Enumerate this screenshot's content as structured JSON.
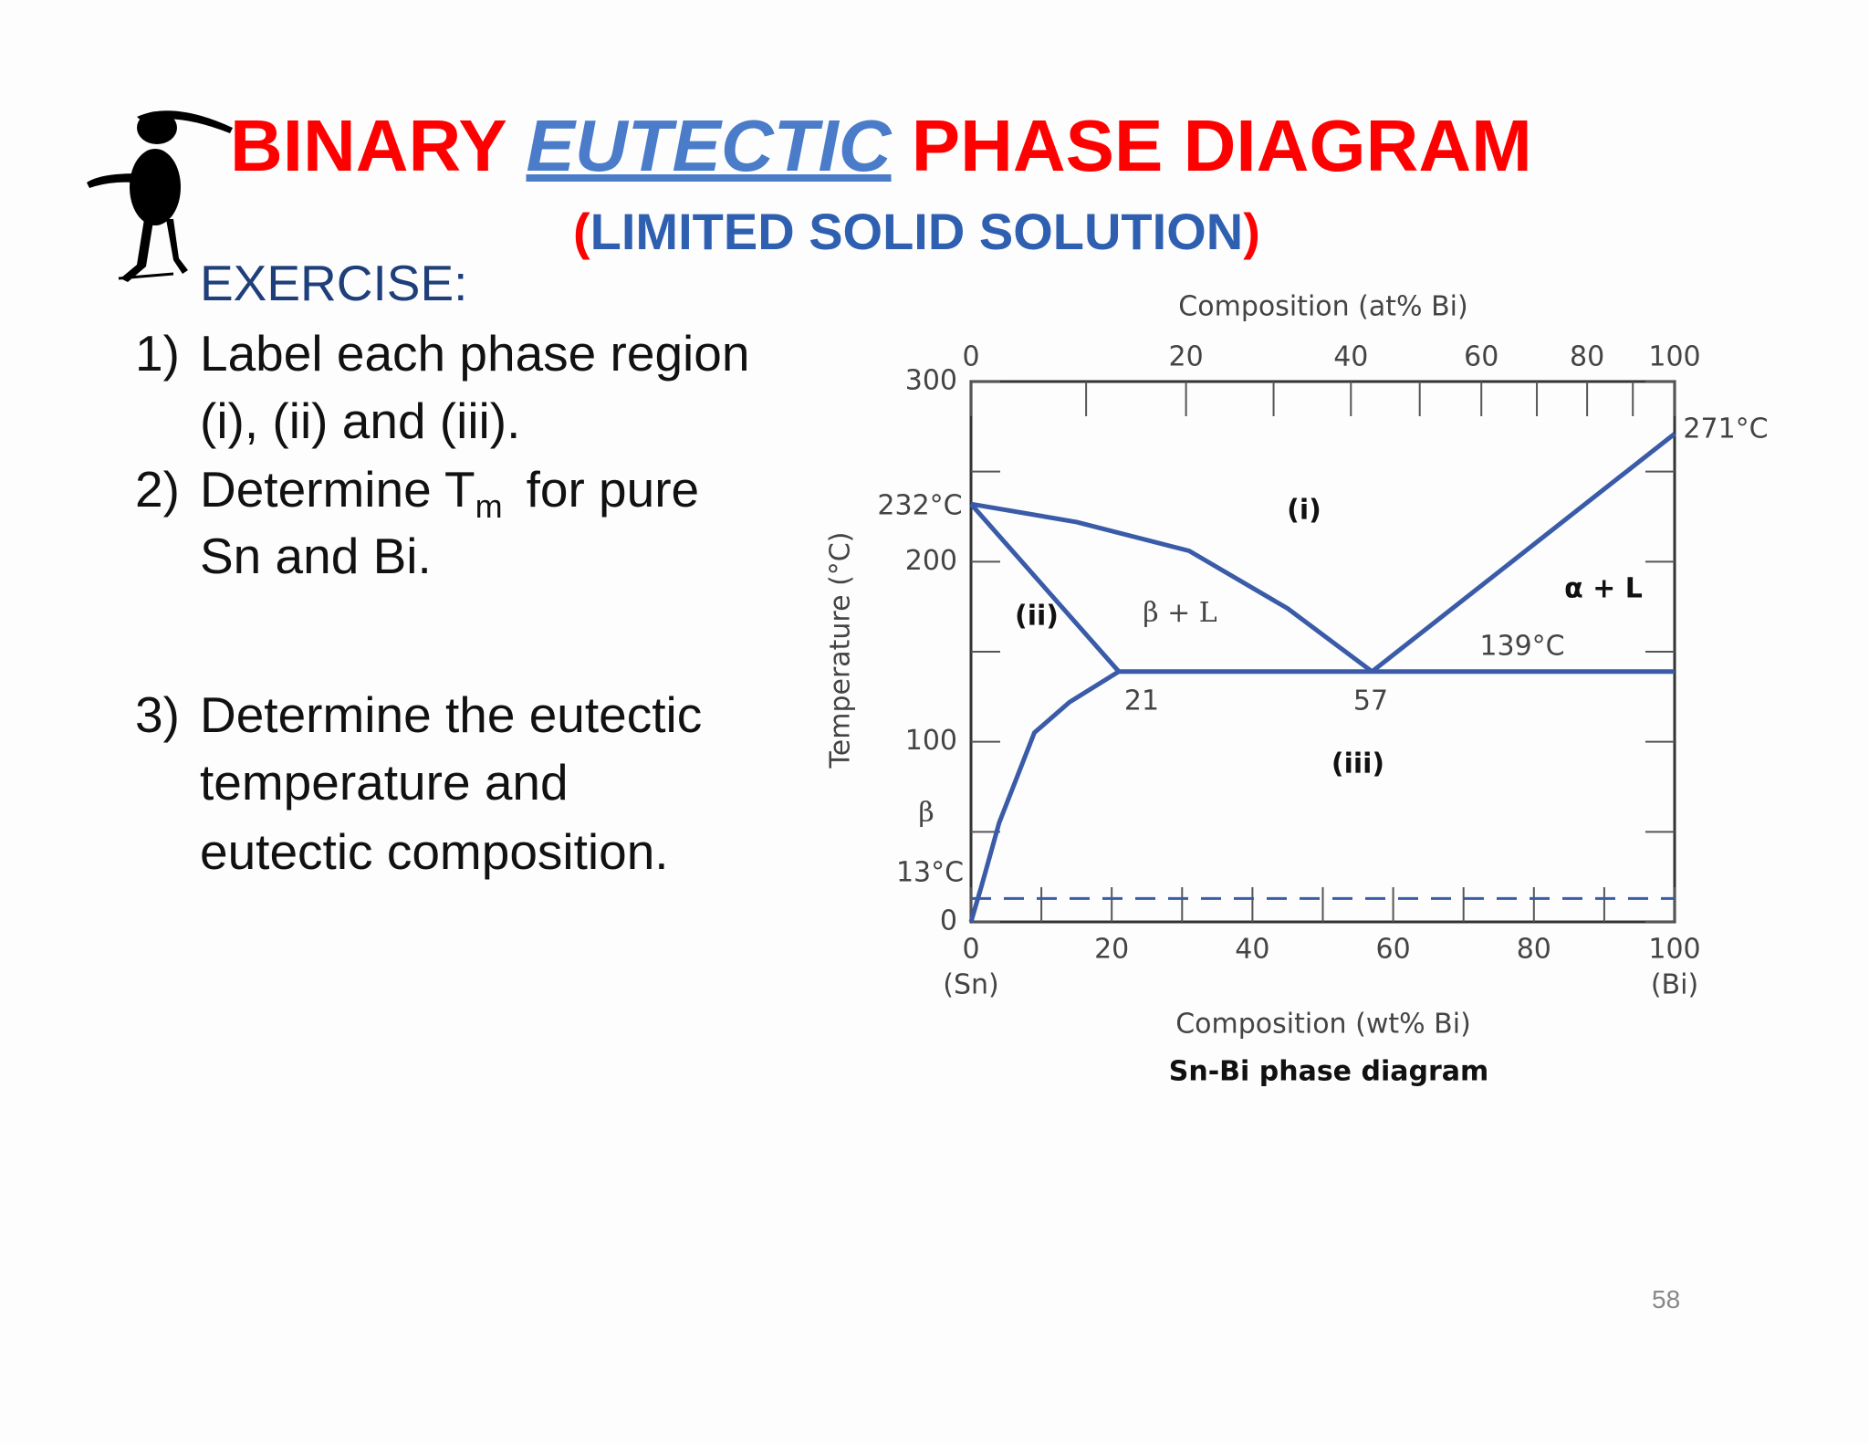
{
  "header": {
    "title_start": "BINARY",
    "title_emphasis": "EUTECTIC",
    "title_end": "PHASE DIAGRAM",
    "subtitle_open": "(",
    "subtitle": "LIMITED SOLID SOLUTION",
    "subtitle_close": ")"
  },
  "exercise": {
    "heading": "EXERCISE:",
    "items": [
      {
        "number": "1)",
        "lines": [
          "Label each phase region",
          "(i), (ii) and (iii)."
        ]
      },
      {
        "number": "2)",
        "lines": [
          "Determine T",
          "Sn and Bi."
        ],
        "subscript": "m",
        "after": "for pure"
      },
      {
        "number": "3)",
        "lines": [
          "Determine the eutectic",
          "temperature and",
          "eutectic composition."
        ]
      }
    ]
  },
  "diagram": {
    "top_title": "Composition (at% Bi)",
    "x_title": "Composition (wt% Bi)",
    "y_title": "Temperature (°C)",
    "caption": "Sn-Bi phase diagram",
    "xlim": [
      0,
      100
    ],
    "ylim": [
      0,
      300
    ],
    "xticks": [
      0,
      20,
      40,
      60,
      80,
      100
    ],
    "yticks": [
      0,
      100,
      200,
      300
    ],
    "top_ticks": [
      0,
      20,
      40,
      60,
      80,
      100
    ],
    "end_labels": [
      "(Sn)",
      "(Bi)"
    ],
    "line_color": "#3a5ba8",
    "curves": [
      {
        "points": [
          [
            0,
            232
          ],
          [
            15,
            222
          ],
          [
            31,
            206
          ],
          [
            45,
            174
          ],
          [
            57,
            139
          ]
        ]
      },
      {
        "points": [
          [
            57,
            139
          ],
          [
            100,
            271
          ]
        ]
      },
      {
        "points": [
          [
            0,
            232
          ],
          [
            21,
            139
          ]
        ]
      },
      {
        "points": [
          [
            21,
            139
          ],
          [
            100,
            139
          ]
        ]
      },
      {
        "points": [
          [
            21,
            139
          ],
          [
            14,
            122
          ],
          [
            9,
            105
          ],
          [
            4,
            55
          ],
          [
            1.5,
            20
          ],
          [
            0,
            0
          ]
        ]
      },
      {
        "points": [
          [
            0,
            13
          ],
          [
            100,
            13
          ]
        ],
        "dashed": true
      }
    ],
    "annotations": [
      "232°C",
      "271°C",
      "139°C",
      "21",
      "57",
      "13°C",
      "(i)",
      "(ii)",
      "(iii)",
      "β + L",
      "α  + L",
      "β"
    ]
  },
  "page_number": "58"
}
